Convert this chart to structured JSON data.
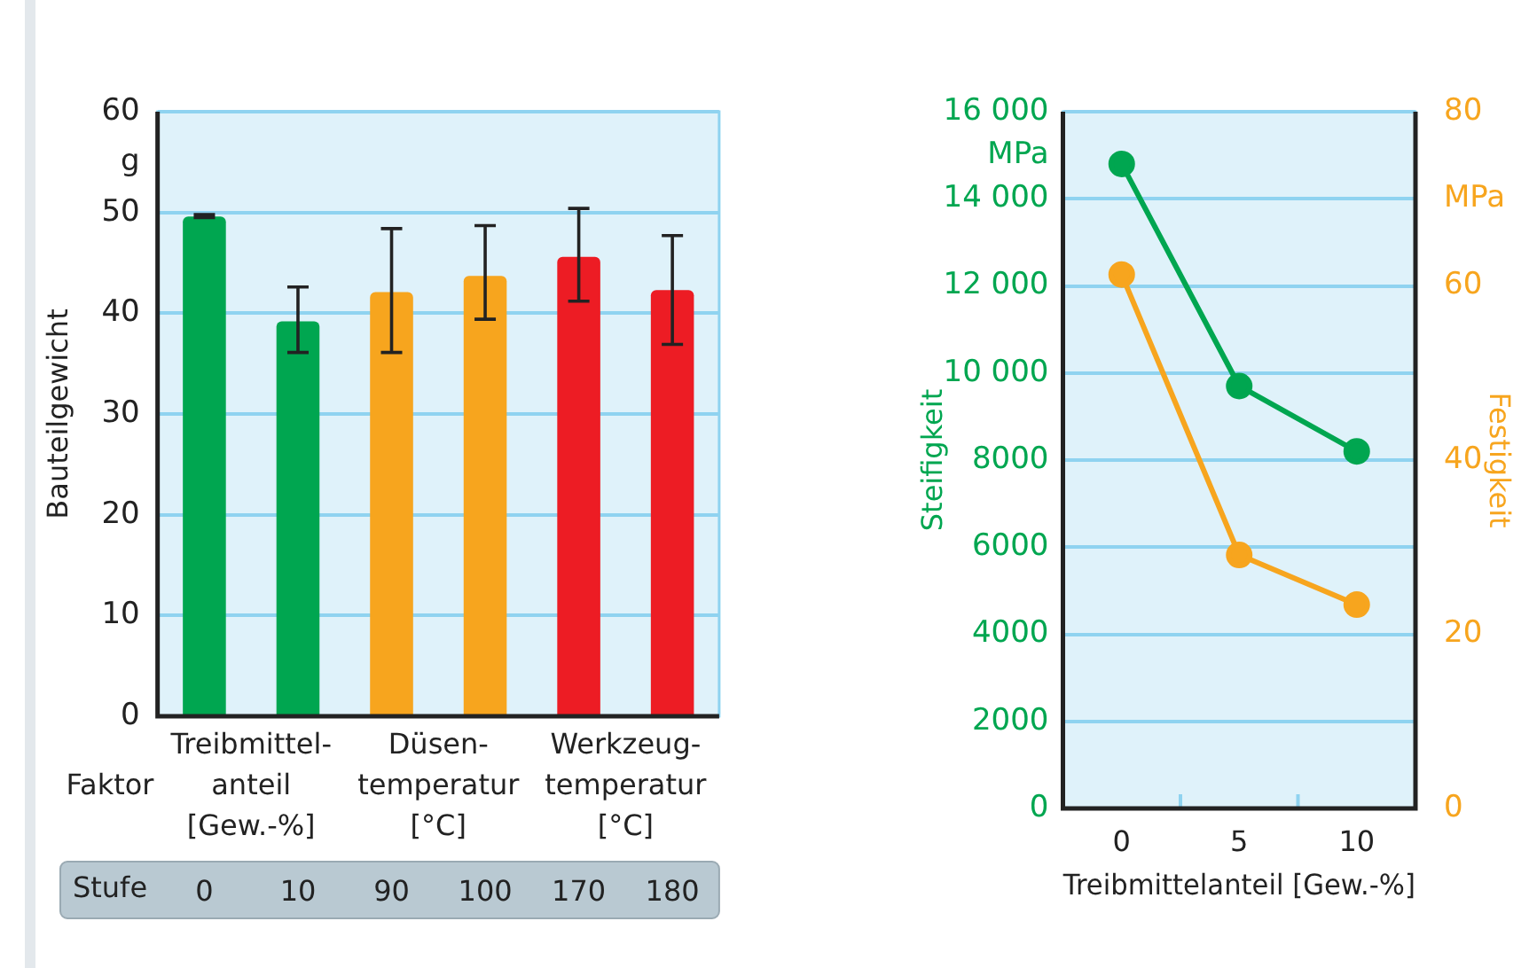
{
  "chart_data": [
    {
      "type": "bar",
      "ylabel": "Bauteilgewicht",
      "categories": [
        "0",
        "10",
        "90",
        "100",
        "170",
        "180"
      ],
      "values": [
        49.6,
        39.2,
        42.1,
        43.7,
        45.6,
        42.3
      ],
      "colors": [
        "#00a650",
        "#00a650",
        "#f7a51e",
        "#f7a51e",
        "#ed1c24",
        "#ed1c24"
      ],
      "errors": [
        [
          49.5,
          49.8
        ],
        [
          36.1,
          42.6
        ],
        [
          36.1,
          48.4
        ],
        [
          39.4,
          48.7
        ],
        [
          41.2,
          50.4
        ],
        [
          36.9,
          47.7
        ]
      ],
      "ylim": [
        0,
        60
      ],
      "yticks": [
        0,
        10,
        20,
        30,
        40,
        50,
        {
          "value": 55,
          "label": "g"
        },
        60
      ],
      "grid": "y",
      "legend": false,
      "annotations": [
        "Faktor",
        "Treibmittel-\nanteil\n[Gew.-%]",
        "Düsen-\ntemperatur\n[°C]",
        "Werkzeug-\ntemperatur\n[°C]",
        "Stufe"
      ]
    },
    {
      "type": "line",
      "xlabel": "Treibmittelanteil [Gew.-%]",
      "ylabel": "Steifigkeit",
      "y2label": "Festigkeit",
      "x": [
        0,
        5,
        10
      ],
      "series": [
        {
          "color": "#00a650",
          "values": [
            14800,
            9700,
            8200
          ]
        },
        {
          "color": "#f7a51e",
          "values": [
            61.3,
            29.1,
            23.4
          ],
          "axis": "y2"
        }
      ],
      "xlim": [
        -2.5,
        12.5
      ],
      "xticks": [
        0,
        {
          "value": 2.5,
          "label": null
        },
        5,
        {
          "value": 7.5,
          "label": null
        },
        10
      ],
      "ylim": [
        0,
        16000
      ],
      "yticks": [
        0,
        2000,
        4000,
        6000,
        8000,
        {
          "value": 10000,
          "label": "10 000"
        },
        {
          "value": 12000,
          "label": "12 000"
        },
        {
          "value": 14000,
          "label": "14 000"
        },
        {
          "value": 15000,
          "label": "MPa"
        },
        {
          "value": 16000,
          "label": "16 000"
        }
      ],
      "y2lim": [
        0,
        80
      ],
      "y2ticks": [
        0,
        20,
        40,
        60,
        {
          "value": 70,
          "label": "MPa"
        },
        80
      ],
      "grid": "y",
      "legend": false,
      "marker": "circle",
      "line_style": "solid"
    }
  ]
}
